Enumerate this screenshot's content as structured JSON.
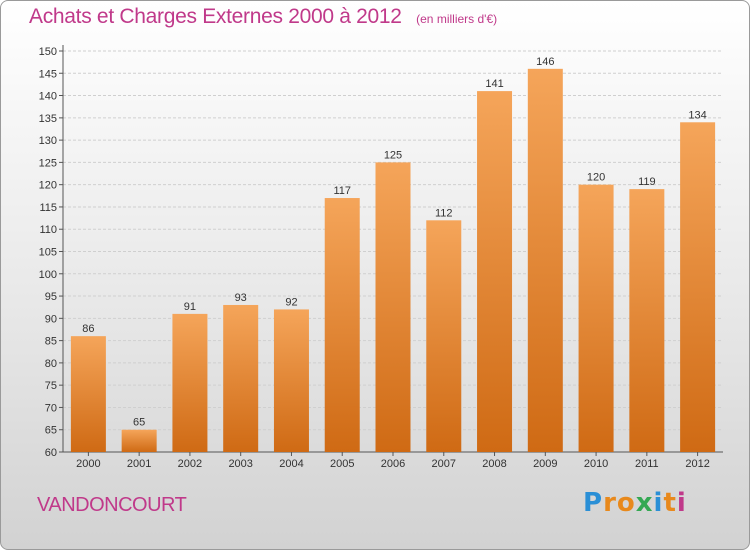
{
  "header": {
    "title": "Achats et Charges Externes 2000 à 2012",
    "subtitle": "(en milliers d'€)"
  },
  "commune": "VANDONCOURT",
  "logo": {
    "text": "Proxiti",
    "letters": [
      "P",
      "r",
      "o",
      "x",
      "i",
      "t",
      "i"
    ],
    "colors": [
      "#2a8fd6",
      "#e8891c",
      "#e8891c",
      "#34a853",
      "#2a8fd6",
      "#e8891c",
      "#c0398a"
    ]
  },
  "colors": {
    "bar_top": "#f5a55a",
    "bar_bottom": "#cf6a14",
    "title": "#c0398a",
    "grid": "#cfcfcf"
  },
  "chart_data": {
    "type": "bar",
    "title": "Achats et Charges Externes 2000 à 2012",
    "subtitle": "(en milliers d'€)",
    "categories": [
      "2000",
      "2001",
      "2002",
      "2003",
      "2004",
      "2005",
      "2006",
      "2007",
      "2008",
      "2009",
      "2010",
      "2011",
      "2012"
    ],
    "values": [
      86,
      65,
      91,
      93,
      92,
      117,
      125,
      112,
      141,
      146,
      120,
      119,
      134
    ],
    "ylim": [
      60,
      150
    ],
    "yticks": [
      60,
      65,
      70,
      75,
      80,
      85,
      90,
      95,
      100,
      105,
      110,
      115,
      120,
      125,
      130,
      135,
      140,
      145,
      150
    ],
    "grid": true
  }
}
